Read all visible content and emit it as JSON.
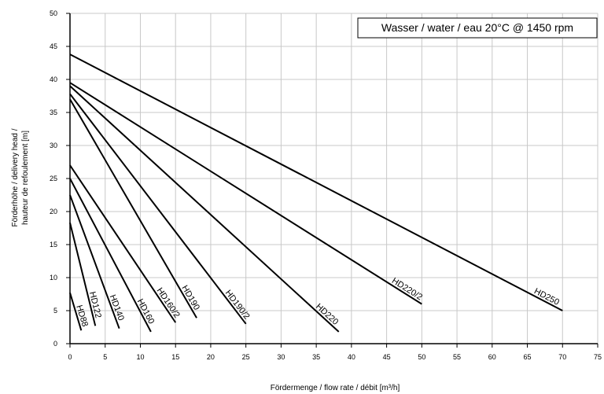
{
  "chart_data": {
    "type": "line",
    "title": "",
    "note": "Wasser / water / eau 20°C @ 1450 rpm",
    "xlabel": "Fördermenge / flow rate / débit [m³/h]",
    "ylabel_lines": [
      "Förderhöhe / delivery head /",
      "hauteur de refoulement [m]"
    ],
    "xlim": [
      0,
      75
    ],
    "ylim": [
      0,
      50
    ],
    "xticks": [
      0,
      5,
      10,
      15,
      20,
      25,
      30,
      35,
      40,
      45,
      50,
      55,
      60,
      65,
      70,
      75
    ],
    "yticks": [
      0,
      5,
      10,
      15,
      20,
      25,
      30,
      35,
      40,
      45,
      50
    ],
    "grid": true,
    "series": [
      {
        "name": "HD88",
        "x": [
          0,
          1.6
        ],
        "y": [
          7.7,
          2.0
        ]
      },
      {
        "name": "HD122",
        "x": [
          0,
          3.6
        ],
        "y": [
          18.3,
          2.7
        ]
      },
      {
        "name": "HD140",
        "x": [
          0,
          7.0
        ],
        "y": [
          22.5,
          2.3
        ]
      },
      {
        "name": "HD160",
        "x": [
          0,
          11.5
        ],
        "y": [
          25.0,
          1.8
        ]
      },
      {
        "name": "HD160/2",
        "x": [
          0,
          15.0
        ],
        "y": [
          27.0,
          3.2
        ]
      },
      {
        "name": "HD190",
        "x": [
          0,
          18.0
        ],
        "y": [
          37.0,
          3.9
        ]
      },
      {
        "name": "HD190/2",
        "x": [
          0,
          25.0
        ],
        "y": [
          37.8,
          3.0
        ]
      },
      {
        "name": "HD220",
        "x": [
          0,
          38.2
        ],
        "y": [
          39.0,
          1.8
        ]
      },
      {
        "name": "HD220/2",
        "x": [
          0,
          50.0
        ],
        "y": [
          39.5,
          6.0
        ]
      },
      {
        "name": "HD250",
        "x": [
          0,
          70.0
        ],
        "y": [
          43.8,
          5.0
        ]
      }
    ]
  }
}
